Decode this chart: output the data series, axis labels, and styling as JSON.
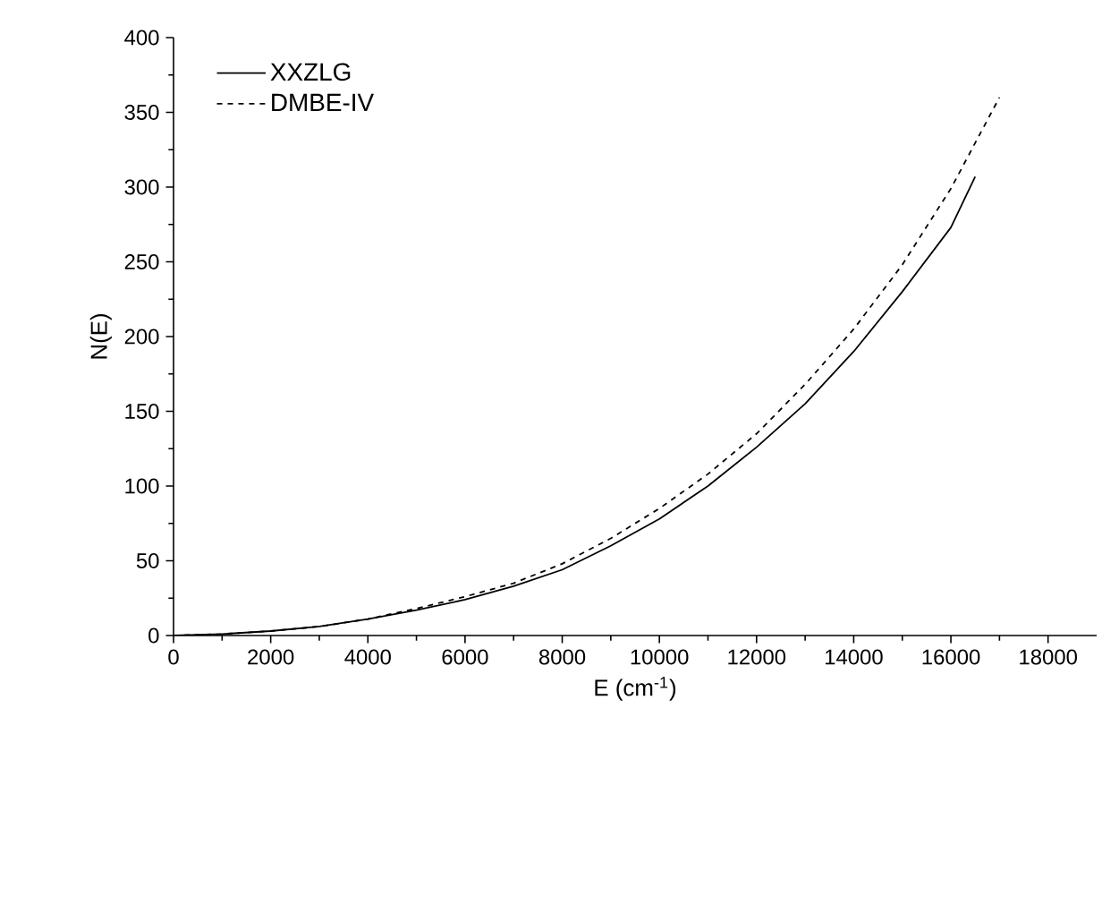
{
  "chart_data": {
    "type": "line",
    "xlabel": "E (cm$^{-1}$)",
    "ylabel": "N(E)",
    "xlim": [
      0,
      19000
    ],
    "ylim": [
      0,
      400
    ],
    "xticks": [
      0,
      2000,
      4000,
      6000,
      8000,
      10000,
      12000,
      14000,
      16000,
      18000
    ],
    "yticks": [
      0,
      50,
      100,
      150,
      200,
      250,
      300,
      350,
      400
    ],
    "legend": "top left",
    "grid": false,
    "marker": "none",
    "series": [
      {
        "name": "XXZLG",
        "color": "#000000",
        "line_style": "solid",
        "x": [
          0,
          1000,
          2000,
          3000,
          4000,
          5000,
          6000,
          7000,
          8000,
          9000,
          10000,
          11000,
          12000,
          13000,
          14000,
          15000,
          16000,
          16500
        ],
        "values": [
          0,
          1,
          3,
          6,
          11,
          17,
          24,
          33,
          44,
          60,
          78,
          100,
          126,
          155,
          190,
          230,
          273,
          307
        ]
      },
      {
        "name": "DMBE-IV",
        "color": "#000000",
        "line_style": "dashed",
        "x": [
          0,
          1000,
          2000,
          3000,
          4000,
          5000,
          6000,
          7000,
          8000,
          9000,
          10000,
          11000,
          12000,
          13000,
          14000,
          15000,
          16000,
          17000
        ],
        "values": [
          0,
          1,
          3,
          6,
          11,
          18,
          26,
          35,
          48,
          65,
          85,
          108,
          135,
          168,
          205,
          248,
          299,
          360
        ]
      }
    ]
  }
}
